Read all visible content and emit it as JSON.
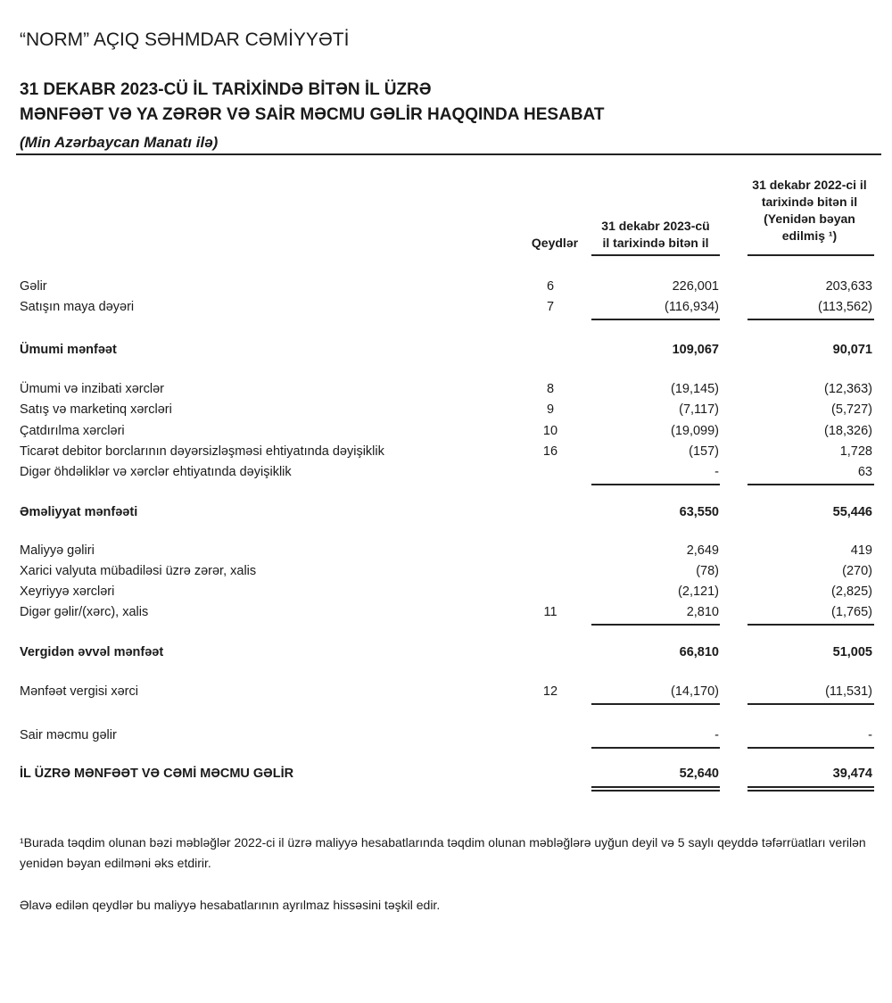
{
  "header": {
    "company": "“NORM” AÇIQ SƏHMDAR CƏMİYYƏTİ",
    "title_line1": "31 DEKABR 2023-CÜ İL TARİXİNDƏ BİTƏN İL ÜZRƏ",
    "title_line2": "MƏNFƏƏT VƏ YA ZƏRƏR VƏ SAİR MƏCMU GƏLİR HAQQINDA HESABAT",
    "currency": "(Min Azərbaycan Manatı ilə)"
  },
  "columns": {
    "notes": "Qeydlər",
    "y2023_line1": "31 dekabr 2023-cü",
    "y2023_line2": "il tarixində bitən il",
    "y2022_line1": "31 dekabr 2022-ci il",
    "y2022_line2": "tarixində bitən il",
    "y2022_line3": "(Yenidən bəyan",
    "y2022_line4": "edilmiş ¹)"
  },
  "rows": [
    {
      "label": "Gəlir",
      "note": "6",
      "y2023": "226,001",
      "y2022": "203,633"
    },
    {
      "label": "Satışın maya dəyəri",
      "note": "7",
      "y2023": "(116,934)",
      "y2022": "(113,562)"
    },
    {
      "label": "Ümumi mənfəət",
      "note": "",
      "y2023": "109,067",
      "y2022": "90,071",
      "bold": true
    },
    {
      "label": "Ümumi və inzibati xərclər",
      "note": "8",
      "y2023": "(19,145)",
      "y2022": "(12,363)"
    },
    {
      "label": "Satış və marketinq xərcləri",
      "note": "9",
      "y2023": "(7,117)",
      "y2022": "(5,727)"
    },
    {
      "label": "Çatdırılma xərcləri",
      "note": "10",
      "y2023": "(19,099)",
      "y2022": "(18,326)"
    },
    {
      "label": "Ticarət debitor borclarının dəyərsizləşməsi ehtiyatında dəyişiklik",
      "note": "16",
      "y2023": "(157)",
      "y2022": "1,728"
    },
    {
      "label": "Digər öhdəliklər və xərclər ehtiyatında dəyişiklik",
      "note": "",
      "y2023": "-",
      "y2022": "63"
    },
    {
      "label": "Əməliyyat mənfəəti",
      "note": "",
      "y2023": "63,550",
      "y2022": "55,446",
      "bold": true
    },
    {
      "label": "Maliyyə gəliri",
      "note": "",
      "y2023": "2,649",
      "y2022": "419"
    },
    {
      "label": "Xarici valyuta mübadiləsi üzrə zərər, xalis",
      "note": "",
      "y2023": "(78)",
      "y2022": "(270)"
    },
    {
      "label": "Xeyriyyə xərcləri",
      "note": "",
      "y2023": "(2,121)",
      "y2022": "(2,825)"
    },
    {
      "label": "Digər gəlir/(xərc), xalis",
      "note": "11",
      "y2023": "2,810",
      "y2022": "(1,765)"
    },
    {
      "label": "Vergidən əvvəl mənfəət",
      "note": "",
      "y2023": "66,810",
      "y2022": "51,005",
      "bold": true
    },
    {
      "label": "Mənfəət vergisi xərci",
      "note": "12",
      "y2023": "(14,170)",
      "y2022": "(11,531)"
    },
    {
      "label": "Sair məcmu gəlir",
      "note": "",
      "y2023": "-",
      "y2022": "-"
    },
    {
      "label": "İL ÜZRƏ MƏNFƏƏT VƏ CƏMİ MƏCMU GƏLİR",
      "note": "",
      "y2023": "52,640",
      "y2022": "39,474",
      "bold": true
    }
  ],
  "footnotes": {
    "restatement": "¹Burada təqdim olunan bəzi məbləğlər 2022-ci il üzrə maliyyə hesabatlarında təqdim olunan məbləğlərə uyğun deyil və 5 saylı qeyddə təfərrüatları verilən yenidən bəyan edilməni əks etdirir.",
    "integral": "Əlavə edilən qeydlər bu maliyyə hesabatlarının ayrılmaz hissəsini təşkil edir."
  }
}
